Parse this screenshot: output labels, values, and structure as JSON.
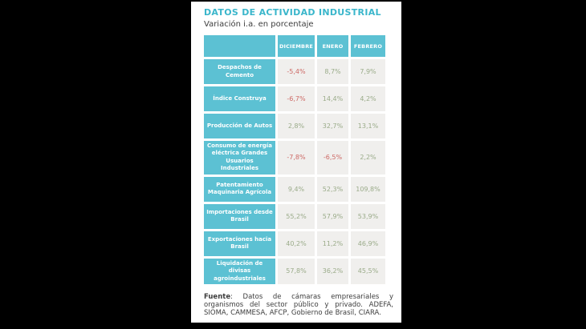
{
  "page": {
    "title": "DATOS DE ACTIVIDAD INDUSTRIAL",
    "subtitle": "Variación i.a. en porcentaje"
  },
  "table": {
    "columns": [
      "DICIEMBRE",
      "ENERO",
      "FEBRERO"
    ],
    "rows": [
      {
        "label": "Despachos de Cemento",
        "values": [
          "-5,4%",
          "8,7%",
          "7,9%"
        ]
      },
      {
        "label": "Índice Construya",
        "values": [
          "-6,7%",
          "14,4%",
          "4,2%"
        ]
      },
      {
        "label": "Producción de Autos",
        "values": [
          "2,8%",
          "32,7%",
          "13,1%"
        ]
      },
      {
        "label": "Consumo de energía eléctrica Grandes Usuarios Industriales",
        "values": [
          "-7,8%",
          "-6,5%",
          "2,2%"
        ]
      },
      {
        "label": "Patentamiento Maquinaria Agrícola",
        "values": [
          "9,4%",
          "52,3%",
          "109,8%"
        ]
      },
      {
        "label": "Importaciones desde Brasil",
        "values": [
          "55,2%",
          "57,9%",
          "53,9%"
        ]
      },
      {
        "label": "Exportaciones hacia Brasil",
        "values": [
          "40,2%",
          "11,2%",
          "46,9%"
        ]
      },
      {
        "label": "Liquidación de divisas agroindustriales",
        "values": [
          "57,8%",
          "36,2%",
          "45,5%"
        ]
      }
    ]
  },
  "footer": {
    "source_label": "Fuente",
    "source_text": ": Datos de cámaras empresariales y organismos del sector público y privado. ADEFA, SIOMA, CAMMESA, AFCP, Gobierno de Brasil, CIARA."
  },
  "colors": {
    "background": "#000000",
    "card": "#ffffff",
    "teal": "#5cc1d3",
    "title_teal": "#3ab6cb",
    "cell_bg": "#f0efed",
    "negative": "#cd6965",
    "positive": "#9aab89",
    "text_dark": "#3d3d3d"
  },
  "chart_data": {
    "type": "table",
    "title": "DATOS DE ACTIVIDAD INDUSTRIAL",
    "subtitle": "Variación i.a. en porcentaje",
    "unit": "%",
    "columns": [
      "DICIEMBRE",
      "ENERO",
      "FEBRERO"
    ],
    "row_labels": [
      "Despachos de Cemento",
      "Índice Construya",
      "Producción de Autos",
      "Consumo de energía eléctrica Grandes Usuarios Industriales",
      "Patentamiento Maquinaria Agrícola",
      "Importaciones desde Brasil",
      "Exportaciones hacia Brasil",
      "Liquidación de divisas agroindustriales"
    ],
    "values": [
      [
        -5.4,
        8.7,
        7.9
      ],
      [
        -6.7,
        14.4,
        4.2
      ],
      [
        2.8,
        32.7,
        13.1
      ],
      [
        -7.8,
        -6.5,
        2.2
      ],
      [
        9.4,
        52.3,
        109.8
      ],
      [
        55.2,
        57.9,
        53.9
      ],
      [
        40.2,
        11.2,
        46.9
      ],
      [
        57.8,
        36.2,
        45.5
      ]
    ]
  }
}
